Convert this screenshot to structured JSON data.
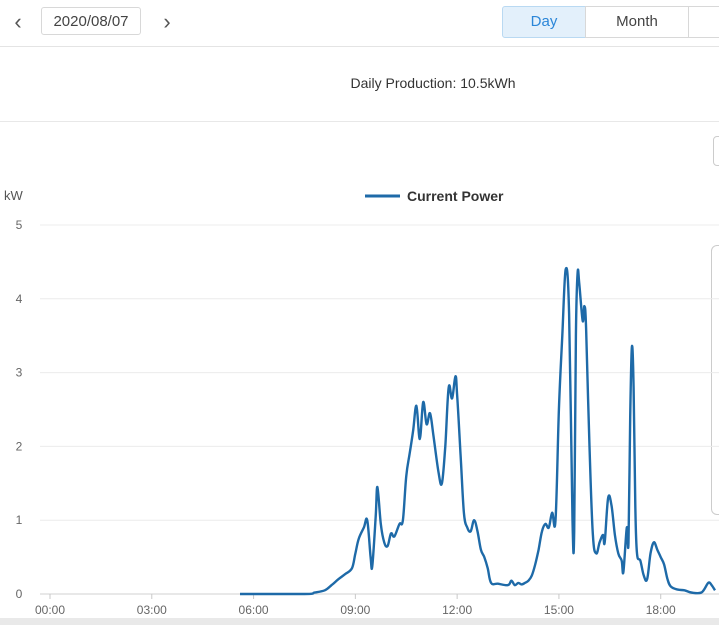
{
  "header": {
    "date": "2020/08/07",
    "tabs": [
      {
        "label": "Day",
        "active": true
      },
      {
        "label": "Month",
        "active": false
      }
    ]
  },
  "summary": {
    "text": "Daily Production: 10.5kWh"
  },
  "colors": {
    "line": "#1e6aa8",
    "accent": "#2b86d8",
    "grid": "#ececec"
  },
  "chart_data": {
    "type": "line",
    "title": "",
    "xlabel": "",
    "ylabel": "kW",
    "ylim": [
      0,
      5
    ],
    "yticks": [
      "0",
      "1",
      "2",
      "3",
      "4",
      "5"
    ],
    "xticks": [
      "00:00",
      "03:00",
      "06:00",
      "09:00",
      "12:00",
      "15:00",
      "18:00"
    ],
    "xlim_hours": [
      0,
      19.6
    ],
    "grid": true,
    "legend": "top-center",
    "series": [
      {
        "name": "Current Power",
        "points": [
          [
            5.6,
            0
          ],
          [
            7.5,
            0
          ],
          [
            7.8,
            0.02
          ],
          [
            8.1,
            0.05
          ],
          [
            8.3,
            0.12
          ],
          [
            8.5,
            0.2
          ],
          [
            8.7,
            0.27
          ],
          [
            8.9,
            0.35
          ],
          [
            9.0,
            0.55
          ],
          [
            9.1,
            0.75
          ],
          [
            9.25,
            0.9
          ],
          [
            9.35,
            1.0
          ],
          [
            9.45,
            0.5
          ],
          [
            9.5,
            0.38
          ],
          [
            9.6,
            1.05
          ],
          [
            9.65,
            1.45
          ],
          [
            9.75,
            0.95
          ],
          [
            9.85,
            0.7
          ],
          [
            9.95,
            0.65
          ],
          [
            10.05,
            0.82
          ],
          [
            10.15,
            0.78
          ],
          [
            10.3,
            0.95
          ],
          [
            10.4,
            1.0
          ],
          [
            10.5,
            1.6
          ],
          [
            10.6,
            1.9
          ],
          [
            10.7,
            2.2
          ],
          [
            10.8,
            2.55
          ],
          [
            10.9,
            2.1
          ],
          [
            11.0,
            2.6
          ],
          [
            11.1,
            2.3
          ],
          [
            11.2,
            2.45
          ],
          [
            11.3,
            2.15
          ],
          [
            11.45,
            1.65
          ],
          [
            11.55,
            1.5
          ],
          [
            11.65,
            2.0
          ],
          [
            11.75,
            2.8
          ],
          [
            11.85,
            2.65
          ],
          [
            11.95,
            2.95
          ],
          [
            12.0,
            2.7
          ],
          [
            12.1,
            1.9
          ],
          [
            12.2,
            1.1
          ],
          [
            12.3,
            0.9
          ],
          [
            12.4,
            0.85
          ],
          [
            12.5,
            1.0
          ],
          [
            12.6,
            0.85
          ],
          [
            12.7,
            0.6
          ],
          [
            12.8,
            0.5
          ],
          [
            12.9,
            0.35
          ],
          [
            13.0,
            0.15
          ],
          [
            13.2,
            0.14
          ],
          [
            13.5,
            0.12
          ],
          [
            13.6,
            0.18
          ],
          [
            13.7,
            0.12
          ],
          [
            13.8,
            0.15
          ],
          [
            13.9,
            0.13
          ],
          [
            14.0,
            0.15
          ],
          [
            14.1,
            0.18
          ],
          [
            14.2,
            0.25
          ],
          [
            14.3,
            0.4
          ],
          [
            14.4,
            0.6
          ],
          [
            14.5,
            0.85
          ],
          [
            14.6,
            0.95
          ],
          [
            14.7,
            0.9
          ],
          [
            14.8,
            1.1
          ],
          [
            14.9,
            1.0
          ],
          [
            15.0,
            2.5
          ],
          [
            15.1,
            3.5
          ],
          [
            15.2,
            4.4
          ],
          [
            15.3,
            3.8
          ],
          [
            15.4,
            1.0
          ],
          [
            15.45,
            0.85
          ],
          [
            15.5,
            3.5
          ],
          [
            15.55,
            4.35
          ],
          [
            15.6,
            4.2
          ],
          [
            15.7,
            3.7
          ],
          [
            15.75,
            3.9
          ],
          [
            15.8,
            3.6
          ],
          [
            15.9,
            2.0
          ],
          [
            16.0,
            0.8
          ],
          [
            16.1,
            0.55
          ],
          [
            16.2,
            0.7
          ],
          [
            16.3,
            0.8
          ],
          [
            16.35,
            0.7
          ],
          [
            16.45,
            1.3
          ],
          [
            16.55,
            1.2
          ],
          [
            16.65,
            0.8
          ],
          [
            16.75,
            0.55
          ],
          [
            16.85,
            0.45
          ],
          [
            16.9,
            0.3
          ],
          [
            17.0,
            0.9
          ],
          [
            17.05,
            0.7
          ],
          [
            17.1,
            2.4
          ],
          [
            17.15,
            3.35
          ],
          [
            17.2,
            2.8
          ],
          [
            17.25,
            1.2
          ],
          [
            17.3,
            0.55
          ],
          [
            17.4,
            0.45
          ],
          [
            17.5,
            0.25
          ],
          [
            17.6,
            0.2
          ],
          [
            17.7,
            0.55
          ],
          [
            17.8,
            0.7
          ],
          [
            17.9,
            0.6
          ],
          [
            18.0,
            0.5
          ],
          [
            18.1,
            0.4
          ],
          [
            18.2,
            0.2
          ],
          [
            18.3,
            0.1
          ],
          [
            18.5,
            0.06
          ],
          [
            18.7,
            0.05
          ],
          [
            18.9,
            0.02
          ],
          [
            19.2,
            0.02
          ],
          [
            19.4,
            0.15
          ],
          [
            19.5,
            0.12
          ],
          [
            19.6,
            0.05
          ]
        ]
      }
    ]
  }
}
